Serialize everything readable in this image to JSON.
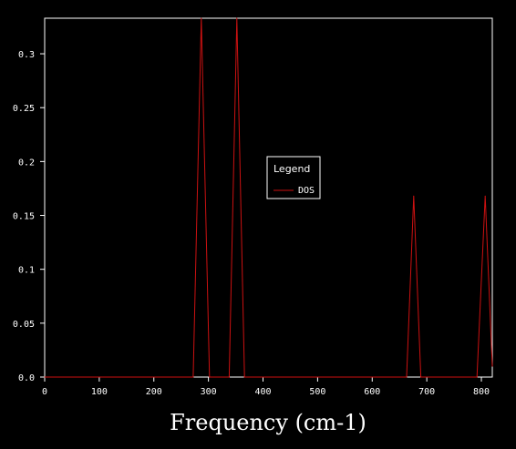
{
  "chart_data": {
    "type": "line",
    "title": "",
    "xlabel": "Frequency (cm-1)",
    "ylabel": "",
    "xlim": [
      0,
      820
    ],
    "ylim": [
      0,
      0.333
    ],
    "x_ticks": [
      0,
      100,
      200,
      300,
      400,
      500,
      600,
      700,
      800
    ],
    "y_ticks": [
      0.0,
      0.05,
      0.1,
      0.15,
      0.2,
      0.25,
      0.3
    ],
    "y_tick_labels": [
      "0.0",
      "0.05",
      "0.1",
      "0.15",
      "0.2",
      "0.25",
      "0.3"
    ],
    "grid": false,
    "legend": {
      "title": "Legend",
      "placement": "center"
    },
    "series": [
      {
        "name": "DOS",
        "color": "#cc1111",
        "points": [
          [
            0,
            0
          ],
          [
            272,
            0
          ],
          [
            287,
            0.333
          ],
          [
            302,
            0
          ],
          [
            338,
            0
          ],
          [
            352,
            0.333
          ],
          [
            366,
            0
          ],
          [
            663,
            0
          ],
          [
            676,
            0.168
          ],
          [
            689,
            0
          ],
          [
            792,
            0
          ],
          [
            807,
            0.168
          ],
          [
            820,
            0.01
          ]
        ]
      }
    ]
  }
}
